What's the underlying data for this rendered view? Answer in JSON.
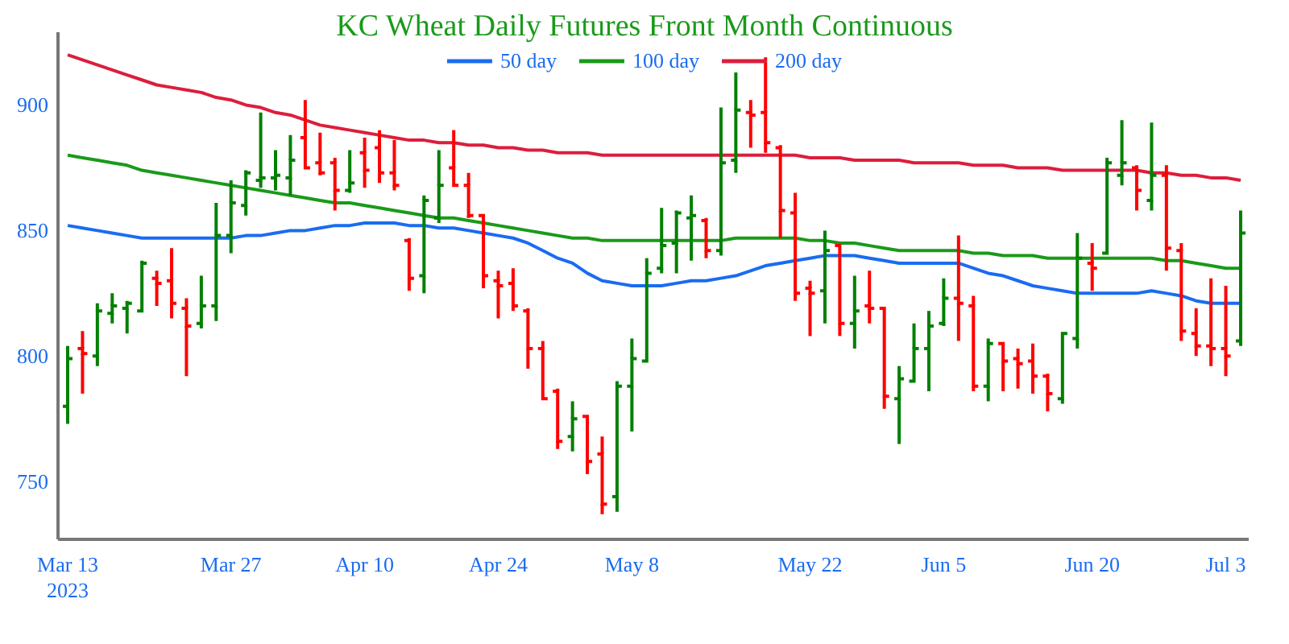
{
  "chart_data": {
    "type": "candlestick",
    "title": "KC Wheat Daily Futures Front Month Continuous",
    "categories": [
      "Mar 13\n2023",
      null,
      null,
      null,
      null,
      null,
      null,
      null,
      null,
      null,
      null,
      "Mar 27",
      null,
      null,
      null,
      null,
      null,
      null,
      null,
      null,
      "Apr 10",
      null,
      null,
      null,
      null,
      null,
      null,
      null,
      null,
      "Apr 24",
      null,
      null,
      null,
      null,
      null,
      null,
      null,
      null,
      "May 8",
      null,
      null,
      null,
      null,
      null,
      null,
      null,
      null,
      null,
      null,
      null,
      "May 22",
      null,
      null,
      null,
      null,
      null,
      null,
      null,
      null,
      "Jun 5",
      null,
      null,
      null,
      null,
      null,
      null,
      null,
      null,
      null,
      "Jun 20",
      null,
      null,
      null,
      null,
      null,
      null,
      null,
      null,
      "Jul 3",
      null
    ],
    "ohlc": [
      [
        780,
        804,
        773,
        799
      ],
      [
        803,
        810,
        785,
        801
      ],
      [
        800,
        821,
        796,
        818
      ],
      [
        817,
        825,
        813,
        820
      ],
      [
        819,
        822,
        809,
        821
      ],
      [
        818,
        838,
        818,
        837
      ],
      [
        831,
        834,
        820,
        829
      ],
      [
        830,
        843,
        815,
        821
      ],
      [
        819,
        823,
        792,
        812
      ],
      [
        813,
        832,
        811,
        820
      ],
      [
        820,
        861,
        814,
        848
      ],
      [
        848,
        870,
        841,
        861
      ],
      [
        860,
        874,
        856,
        873
      ],
      [
        870,
        897,
        867,
        871
      ],
      [
        871,
        882,
        866,
        872
      ],
      [
        871,
        888,
        864,
        878
      ],
      [
        887,
        902,
        875,
        875
      ],
      [
        877,
        889,
        872,
        873
      ],
      [
        877,
        879,
        858,
        866
      ],
      [
        866,
        882,
        865,
        869
      ],
      [
        881,
        887,
        867,
        874
      ],
      [
        883,
        890,
        869,
        873
      ],
      [
        873,
        886,
        866,
        868
      ],
      [
        846,
        847,
        826,
        831
      ],
      [
        832,
        864,
        825,
        862
      ],
      [
        855,
        882,
        853,
        868
      ],
      [
        875,
        890,
        868,
        868
      ],
      [
        868,
        873,
        855,
        856
      ],
      [
        856,
        856,
        827,
        832
      ],
      [
        830,
        834,
        815,
        828
      ],
      [
        829,
        835,
        818,
        820
      ],
      [
        818,
        819,
        795,
        803
      ],
      [
        803,
        806,
        783,
        783
      ],
      [
        786,
        787,
        763,
        766
      ],
      [
        768,
        782,
        762,
        775
      ],
      [
        776,
        776,
        753,
        758
      ],
      [
        761,
        768,
        737,
        741
      ],
      [
        744,
        790,
        738,
        788
      ],
      [
        788,
        807,
        770,
        799
      ],
      [
        798,
        839,
        798,
        833
      ],
      [
        835,
        859,
        833,
        844
      ],
      [
        845,
        858,
        833,
        857
      ],
      [
        855,
        864,
        838,
        856
      ],
      [
        854,
        855,
        839,
        842
      ],
      [
        842,
        899,
        840,
        877
      ],
      [
        878,
        913,
        873,
        898
      ],
      [
        897,
        902,
        883,
        896
      ],
      [
        897,
        919,
        881,
        885
      ],
      [
        883,
        884,
        847,
        858
      ],
      [
        857,
        865,
        822,
        825
      ],
      [
        827,
        830,
        808,
        825
      ],
      [
        826,
        850,
        813,
        842
      ],
      [
        844,
        844,
        808,
        813
      ],
      [
        813,
        832,
        803,
        818
      ],
      [
        820,
        834,
        813,
        819
      ],
      [
        819,
        819,
        779,
        784
      ],
      [
        783,
        796,
        765,
        791
      ],
      [
        790,
        813,
        790,
        803
      ],
      [
        803,
        818,
        786,
        812
      ],
      [
        813,
        831,
        812,
        823
      ],
      [
        823,
        848,
        806,
        821
      ],
      [
        820,
        824,
        786,
        788
      ],
      [
        788,
        807,
        782,
        805
      ],
      [
        805,
        805,
        786,
        798
      ],
      [
        799,
        803,
        787,
        797
      ],
      [
        798,
        805,
        785,
        792
      ],
      [
        792,
        793,
        778,
        785
      ],
      [
        783,
        809,
        781,
        809
      ],
      [
        807,
        849,
        803,
        839
      ],
      [
        837,
        845,
        826,
        835
      ],
      [
        841,
        879,
        841,
        877
      ],
      [
        872,
        894,
        868,
        877
      ],
      [
        875,
        876,
        858,
        866
      ],
      [
        862,
        893,
        858,
        872
      ],
      [
        872,
        876,
        834,
        843
      ],
      [
        842,
        845,
        806,
        810
      ],
      [
        809,
        819,
        800,
        804
      ],
      [
        804,
        831,
        796,
        803
      ],
      [
        803,
        828,
        792,
        800
      ],
      [
        806,
        858,
        804,
        849
      ]
    ],
    "colors": [
      "#008000",
      "#ff0000",
      "#008000",
      "#008000",
      "#008000",
      "#008000",
      "#ff0000",
      "#ff0000",
      "#ff0000",
      "#008000",
      "#008000",
      "#008000",
      "#008000",
      "#008000",
      "#008000",
      "#008000",
      "#ff0000",
      "#ff0000",
      "#ff0000",
      "#008000",
      "#ff0000",
      "#ff0000",
      "#ff0000",
      "#ff0000",
      "#008000",
      "#008000",
      "#ff0000",
      "#ff0000",
      "#ff0000",
      "#ff0000",
      "#ff0000",
      "#ff0000",
      "#ff0000",
      "#ff0000",
      "#008000",
      "#ff0000",
      "#ff0000",
      "#008000",
      "#008000",
      "#008000",
      "#008000",
      "#008000",
      "#008000",
      "#ff0000",
      "#008000",
      "#008000",
      "#ff0000",
      "#ff0000",
      "#ff0000",
      "#ff0000",
      "#ff0000",
      "#008000",
      "#ff0000",
      "#008000",
      "#ff0000",
      "#ff0000",
      "#008000",
      "#008000",
      "#008000",
      "#008000",
      "#ff0000",
      "#ff0000",
      "#008000",
      "#ff0000",
      "#ff0000",
      "#ff0000",
      "#ff0000",
      "#008000",
      "#008000",
      "#ff0000",
      "#008000",
      "#008000",
      "#ff0000",
      "#008000",
      "#ff0000",
      "#ff0000",
      "#ff0000",
      "#ff0000",
      "#ff0000",
      "#008000"
    ],
    "series": [
      {
        "type": "line",
        "name": "50 day",
        "color": "#1a6cf0",
        "values": [
          852,
          851,
          850,
          849,
          848,
          847,
          847,
          847,
          847,
          847,
          847,
          847,
          848,
          848,
          849,
          850,
          850,
          851,
          852,
          852,
          853,
          853,
          853,
          852,
          852,
          851,
          851,
          850,
          849,
          848,
          847,
          845,
          842,
          839,
          837,
          833,
          830,
          829,
          828,
          828,
          828,
          829,
          830,
          830,
          831,
          832,
          834,
          836,
          837,
          838,
          839,
          840,
          840,
          840,
          839,
          838,
          837,
          837,
          837,
          837,
          837,
          835,
          833,
          832,
          830,
          828,
          827,
          826,
          825,
          825,
          825,
          825,
          825,
          826,
          825,
          824,
          822,
          821,
          821,
          821
        ]
      },
      {
        "type": "line",
        "name": "100 day",
        "color": "#1a9a1a",
        "values": [
          880,
          879,
          878,
          877,
          876,
          874,
          873,
          872,
          871,
          870,
          869,
          868,
          867,
          866,
          865,
          864,
          863,
          862,
          861,
          861,
          860,
          859,
          858,
          857,
          856,
          855,
          855,
          854,
          853,
          852,
          851,
          850,
          849,
          848,
          847,
          847,
          846,
          846,
          846,
          846,
          846,
          846,
          846,
          846,
          846,
          847,
          847,
          847,
          847,
          847,
          846,
          846,
          845,
          845,
          844,
          843,
          842,
          842,
          842,
          842,
          842,
          841,
          841,
          840,
          840,
          840,
          839,
          839,
          839,
          839,
          839,
          839,
          839,
          839,
          838,
          838,
          837,
          836,
          835,
          835
        ]
      },
      {
        "type": "line",
        "name": "200 day",
        "color": "#dc1e3c",
        "values": [
          920,
          918,
          916,
          914,
          912,
          910,
          908,
          907,
          906,
          905,
          903,
          902,
          900,
          899,
          897,
          896,
          894,
          892,
          891,
          890,
          889,
          888,
          887,
          886,
          886,
          885,
          885,
          884,
          884,
          883,
          883,
          882,
          882,
          881,
          881,
          881,
          880,
          880,
          880,
          880,
          880,
          880,
          880,
          880,
          880,
          880,
          880,
          880,
          880,
          880,
          879,
          879,
          879,
          878,
          878,
          878,
          878,
          877,
          877,
          877,
          877,
          876,
          876,
          876,
          875,
          875,
          875,
          874,
          874,
          874,
          874,
          874,
          874,
          873,
          873,
          872,
          872,
          871,
          871,
          870
        ]
      }
    ],
    "ylim": [
      727,
      929
    ],
    "yticks": [
      750,
      800,
      850,
      900
    ],
    "legend": "top"
  }
}
